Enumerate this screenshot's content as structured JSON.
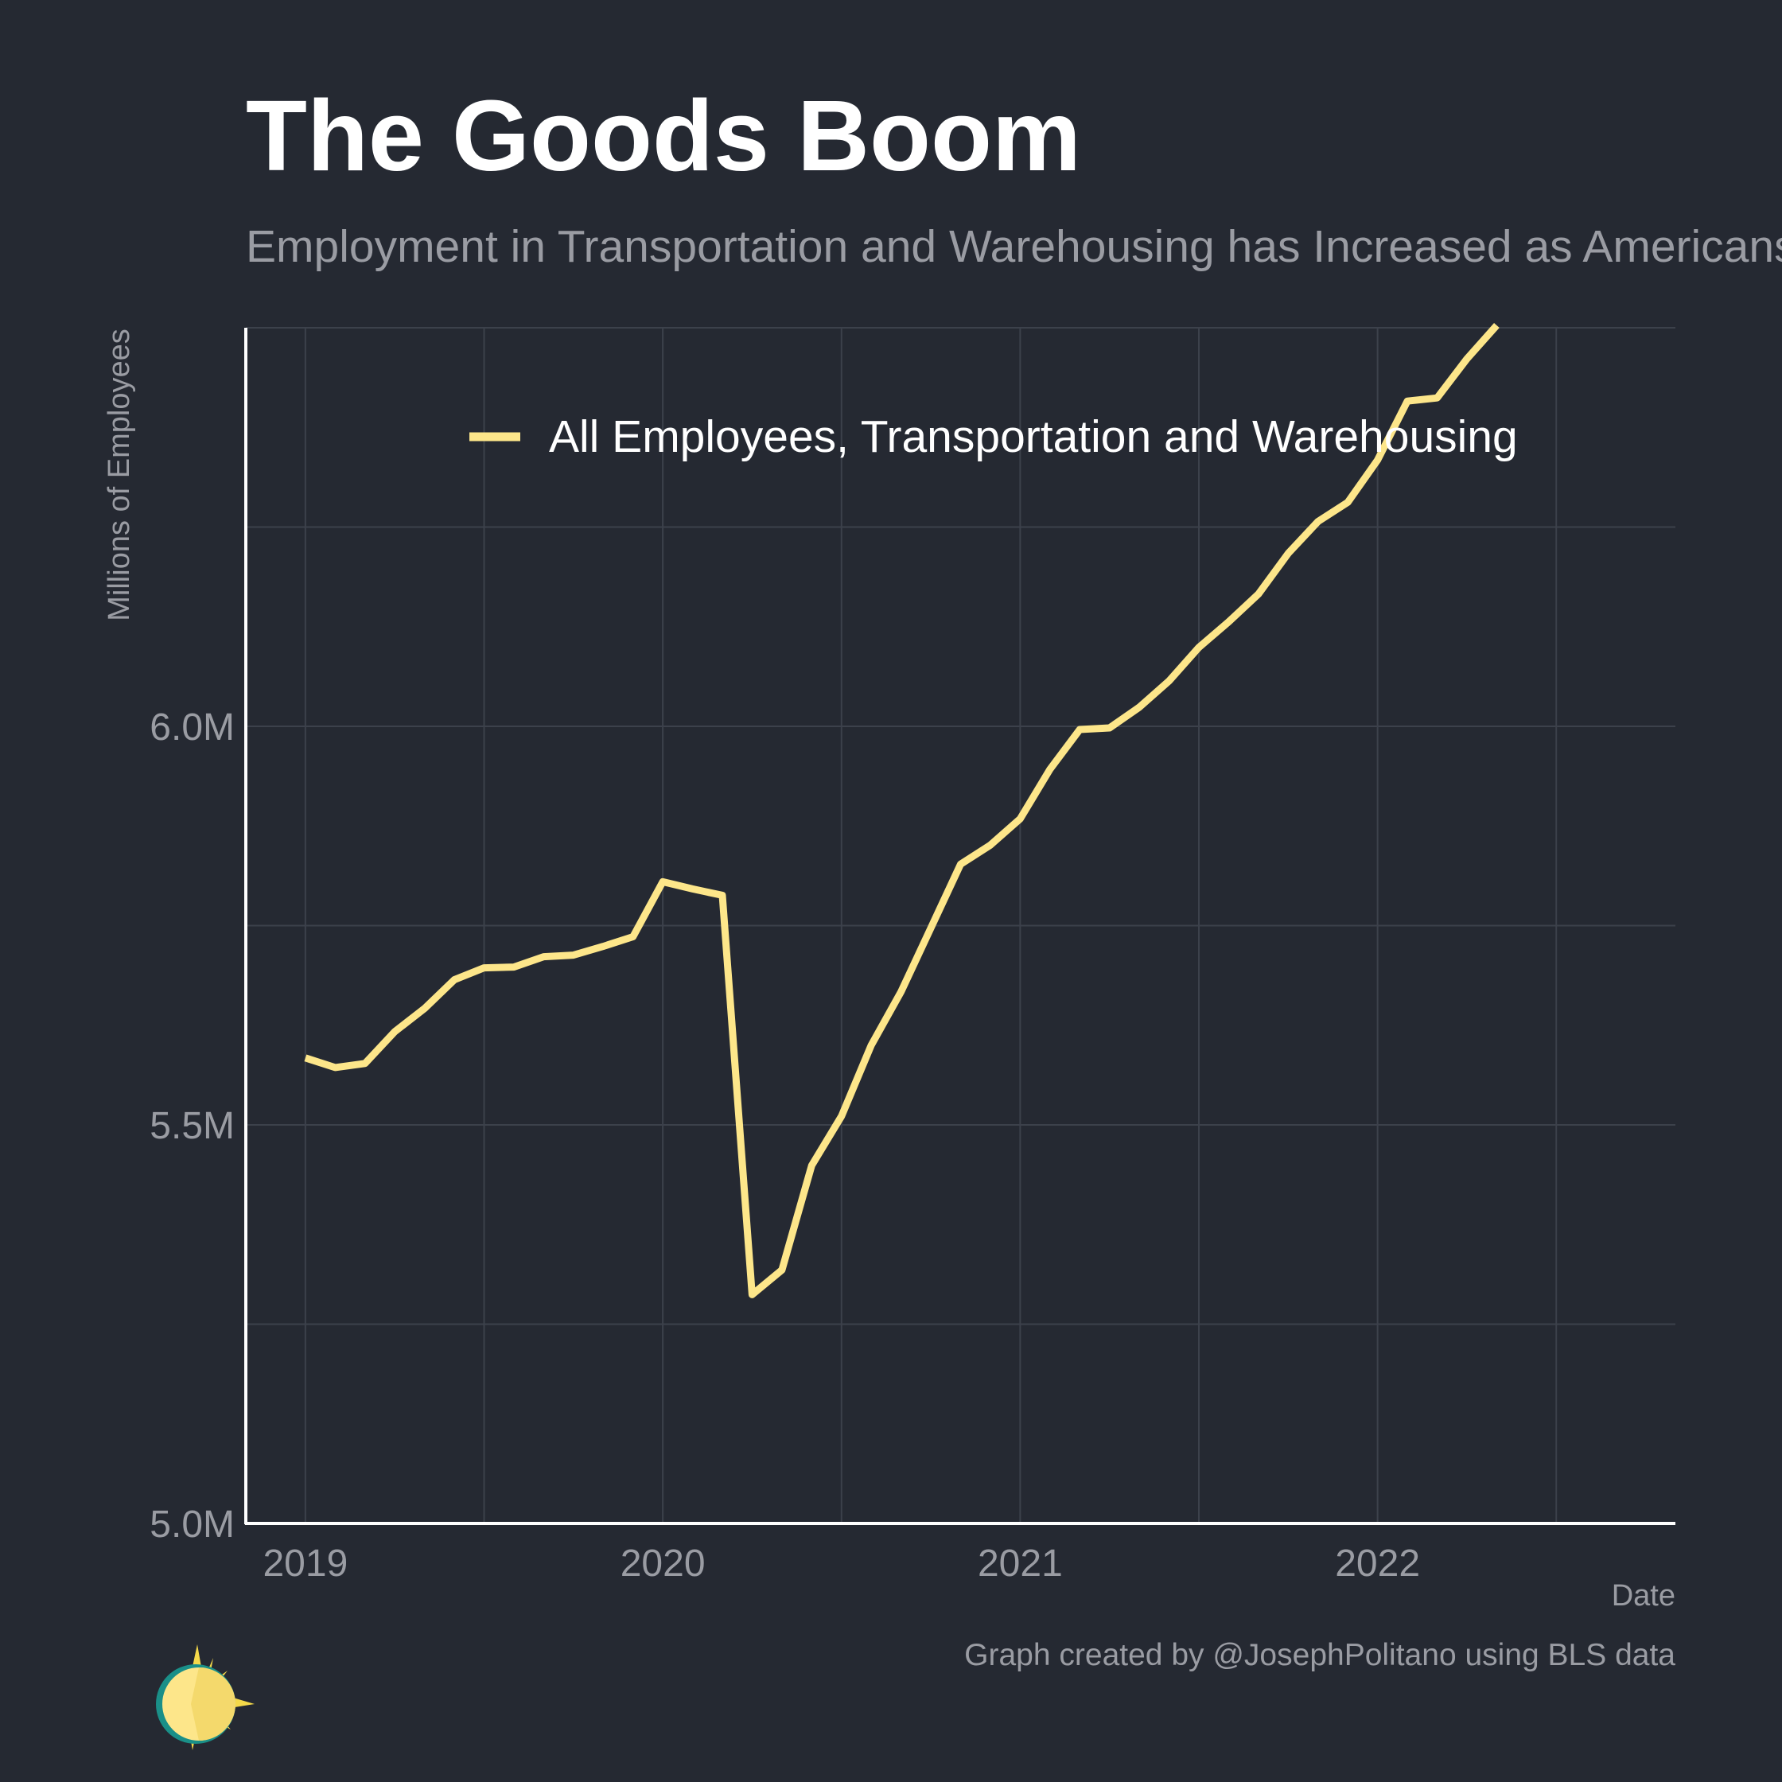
{
  "title": "The Goods Boom",
  "subtitle": "Employment in Transportation and Warehousing has Increased as Americans Buy More Goods",
  "caption": "Graph created by @JosephPolitano using BLS data",
  "logo_icon": "sun-logo-icon",
  "colors": {
    "background": "#252932",
    "line": "#fde68a",
    "grid": "#3c414b",
    "axis": "#ffffff",
    "muted_text": "#9a9ca3"
  },
  "chart_data": {
    "type": "line",
    "xlabel": "Date",
    "ylabel": "Millions of Employees",
    "x_ticks": [
      "2019",
      "2020",
      "2021",
      "2022"
    ],
    "y_ticks": [
      "5.0M",
      "5.5M",
      "6.0M"
    ],
    "xlim": [
      "2018-11",
      "2022-11"
    ],
    "ylim": [
      5.0,
      6.5
    ],
    "grid": true,
    "legend": "top",
    "series": [
      {
        "name": "All Employees, Transportation and Warehousing",
        "x": [
          "2019-01",
          "2019-02",
          "2019-03",
          "2019-04",
          "2019-05",
          "2019-06",
          "2019-07",
          "2019-08",
          "2019-09",
          "2019-10",
          "2019-11",
          "2019-12",
          "2020-01",
          "2020-02",
          "2020-03",
          "2020-04",
          "2020-05",
          "2020-06",
          "2020-07",
          "2020-08",
          "2020-09",
          "2020-10",
          "2020-11",
          "2020-12",
          "2021-01",
          "2021-02",
          "2021-03",
          "2021-04",
          "2021-05",
          "2021-06",
          "2021-07",
          "2021-08",
          "2021-09",
          "2021-10",
          "2021-11",
          "2021-12",
          "2022-01",
          "2022-02",
          "2022-03",
          "2022-04",
          "2022-05"
        ],
        "values": [
          5.584,
          5.572,
          5.577,
          5.617,
          5.646,
          5.682,
          5.697,
          5.698,
          5.711,
          5.713,
          5.724,
          5.736,
          5.805,
          5.796,
          5.788,
          5.287,
          5.318,
          5.449,
          5.511,
          5.6,
          5.667,
          5.747,
          5.827,
          5.851,
          5.884,
          5.946,
          5.996,
          5.998,
          6.024,
          6.057,
          6.099,
          6.131,
          6.166,
          6.217,
          6.257,
          6.281,
          6.334,
          6.408,
          6.412,
          6.461,
          6.503
        ]
      }
    ]
  }
}
